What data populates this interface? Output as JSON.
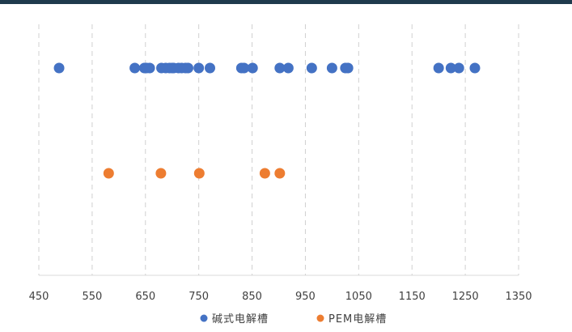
{
  "chart_data": {
    "type": "scatter",
    "xlim": [
      450,
      1350
    ],
    "x_ticks": [
      450,
      550,
      650,
      750,
      850,
      950,
      1050,
      1150,
      1250,
      1350
    ],
    "grid": "vertical-dashed",
    "legend_position": "bottom",
    "colors": {
      "axis": "#d9d9d9",
      "grid": "#d0d0d0",
      "top_rule": "#1f3a4d"
    },
    "series": [
      {
        "name": "碱式电解槽",
        "color": "#4472c4",
        "row": 1,
        "x": [
          488,
          630,
          648,
          652,
          658,
          680,
          688,
          695,
          700,
          703,
          712,
          718,
          725,
          730,
          750,
          771,
          830,
          835,
          851,
          902,
          918,
          962,
          1000,
          1025,
          1030,
          1200,
          1223,
          1238,
          1268
        ]
      },
      {
        "name": "PEM电解槽",
        "color": "#ed7d31",
        "row": 2,
        "x": [
          581,
          679,
          751,
          874,
          902
        ]
      }
    ]
  }
}
